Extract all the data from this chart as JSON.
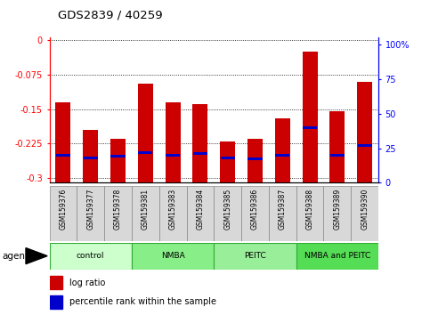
{
  "title": "GDS2839 / 40259",
  "samples": [
    "GSM159376",
    "GSM159377",
    "GSM159378",
    "GSM159381",
    "GSM159383",
    "GSM159384",
    "GSM159385",
    "GSM159386",
    "GSM159387",
    "GSM159388",
    "GSM159389",
    "GSM159390"
  ],
  "log_ratios": [
    -0.135,
    -0.195,
    -0.215,
    -0.095,
    -0.135,
    -0.14,
    -0.22,
    -0.215,
    -0.17,
    -0.025,
    -0.155,
    -0.09
  ],
  "percentile_ranks": [
    20,
    18,
    19,
    22,
    20,
    21,
    18,
    17,
    20,
    40,
    20,
    27
  ],
  "groups": [
    {
      "label": "control",
      "color": "#ccffcc",
      "start": 0,
      "end": 3
    },
    {
      "label": "NMBA",
      "color": "#88ee88",
      "start": 3,
      "end": 6
    },
    {
      "label": "PEITC",
      "color": "#99ee99",
      "start": 6,
      "end": 9
    },
    {
      "label": "NMBA and PEITC",
      "color": "#55dd55",
      "start": 9,
      "end": 12
    }
  ],
  "ylim_left": [
    -0.31,
    0.005
  ],
  "ylim_right": [
    0,
    105
  ],
  "yticks_left": [
    0,
    -0.075,
    -0.15,
    -0.225,
    -0.3
  ],
  "yticks_right": [
    0,
    25,
    50,
    75,
    100
  ],
  "bar_color": "#cc0000",
  "percentile_color": "#0000cc",
  "bar_width": 0.55,
  "agent_label": "agent",
  "legend_log_ratio": "log ratio",
  "legend_percentile": "percentile rank within the sample",
  "group_colors": [
    "#ccffcc",
    "#88ee88",
    "#99ee99",
    "#55dd55"
  ],
  "group_edge_color": "#33aa33"
}
